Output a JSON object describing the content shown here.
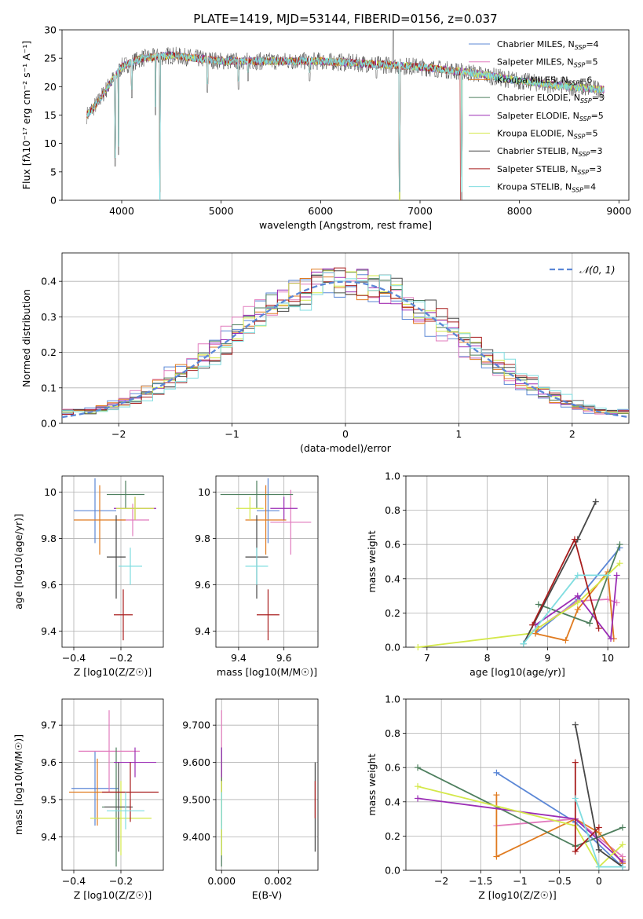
{
  "figure_title": "PLATE=1419, MJD=53144, FIBERID=0156, z=0.037",
  "legend": [
    {
      "label": "Chabrier MILES, N",
      "sub": "SSP",
      "val": "=4",
      "color": "#5b87d6"
    },
    {
      "label": "Salpeter MILES, N",
      "sub": "SSP",
      "val": "=5",
      "color": "#e17bbd"
    },
    {
      "label": "Kroupa MILES, N",
      "sub": "SSP",
      "val": "=6",
      "color": "#e07b20"
    },
    {
      "label": "Chabrier ELODIE, N",
      "sub": "SSP",
      "val": "=3",
      "color": "#4e7f5e"
    },
    {
      "label": "Salpeter ELODIE, N",
      "sub": "SSP",
      "val": "=5",
      "color": "#9b2db5"
    },
    {
      "label": "Kroupa ELODIE, N",
      "sub": "SSP",
      "val": "=5",
      "color": "#d4e84a"
    },
    {
      "label": "Chabrier STELIB, N",
      "sub": "SSP",
      "val": "=3",
      "color": "#474747"
    },
    {
      "label": "Salpeter STELIB, N",
      "sub": "SSP",
      "val": "=3",
      "color": "#a81d1d"
    },
    {
      "label": "Kroupa STELIB, N",
      "sub": "SSP",
      "val": "=4",
      "color": "#7fdde0"
    }
  ],
  "chart_data": [
    {
      "id": "spectrum",
      "type": "line",
      "xlabel": "wavelength [Angstrom, rest frame]",
      "ylabel": "Flux [fλ10⁻¹⁷ erg cm⁻² s⁻¹ A⁻¹]",
      "xlim": [
        3400,
        9100
      ],
      "ylim": [
        0,
        30
      ],
      "xticks": [
        4000,
        5000,
        6000,
        7000,
        8000,
        9000
      ],
      "yticks": [
        0,
        5,
        10,
        15,
        20,
        25,
        30
      ],
      "continuum": [
        [
          3650,
          15
        ],
        [
          3750,
          17
        ],
        [
          3900,
          21
        ],
        [
          4000,
          23.5
        ],
        [
          4200,
          25
        ],
        [
          4500,
          25.5
        ],
        [
          5000,
          24.5
        ],
        [
          6000,
          24.5
        ],
        [
          6500,
          24
        ],
        [
          7000,
          23.5
        ],
        [
          7500,
          22.5
        ],
        [
          8000,
          21
        ],
        [
          8500,
          20
        ],
        [
          8850,
          19.5
        ]
      ],
      "dips": [
        [
          3934,
          6
        ],
        [
          3968,
          8
        ],
        [
          4101,
          18
        ],
        [
          4340,
          15
        ],
        [
          4384,
          0
        ],
        [
          4861,
          19
        ],
        [
          5175,
          19.5
        ],
        [
          5270,
          21
        ],
        [
          5890,
          21
        ],
        [
          6563,
          21.5
        ],
        [
          6795,
          0
        ],
        [
          7420,
          0
        ]
      ]
    },
    {
      "id": "residuals",
      "type": "step",
      "xlabel": "(data-model)/error",
      "ylabel": "Normed distribution",
      "xlim": [
        -2.5,
        2.5
      ],
      "ylim": [
        0,
        0.48
      ],
      "xticks": [
        -2,
        -1,
        0,
        1,
        2
      ],
      "yticks": [
        0.0,
        0.1,
        0.2,
        0.3,
        0.4
      ],
      "legend_label": "𝒩(0, 1)",
      "bins": [
        -2.5,
        -2.4,
        -2.3,
        -2.2,
        -2.1,
        -2.0,
        -1.9,
        -1.8,
        -1.7,
        -1.6,
        -1.5,
        -1.4,
        -1.3,
        -1.2,
        -1.1,
        -1.0,
        -0.9,
        -0.8,
        -0.7,
        -0.6,
        -0.5,
        -0.4,
        -0.3,
        -0.2,
        -0.1,
        0.0,
        0.1,
        0.2,
        0.3,
        0.4,
        0.5,
        0.6,
        0.7,
        0.8,
        0.9,
        1.0,
        1.1,
        1.2,
        1.3,
        1.4,
        1.5,
        1.6,
        1.7,
        1.8,
        1.9,
        2.0,
        2.1,
        2.2,
        2.3,
        2.4,
        2.5
      ]
    },
    {
      "id": "age_vs_Z",
      "type": "errorbar",
      "xlabel": "Z [log10(Z/Z☉)]",
      "ylabel": "age  [log10(age/yr)]",
      "xlim": [
        -0.45,
        -0.02
      ],
      "ylim": [
        9.33,
        10.07
      ],
      "xticks": [
        -0.4,
        -0.2
      ],
      "yticks": [
        9.4,
        9.6,
        9.8,
        10.0
      ],
      "points": [
        {
          "x": -0.31,
          "y": 9.92,
          "xerr": 0.09,
          "yerr": 0.14
        },
        {
          "x": -0.15,
          "y": 9.88,
          "xerr": 0.07,
          "yerr": 0.07
        },
        {
          "x": -0.29,
          "y": 9.88,
          "xerr": 0.11,
          "yerr": 0.15
        },
        {
          "x": -0.18,
          "y": 9.99,
          "xerr": 0.08,
          "yerr": 0.06
        },
        {
          "x": -0.14,
          "y": 9.93,
          "xerr": 0.09,
          "yerr": 0.05
        },
        {
          "x": -0.14,
          "y": 9.93,
          "xerr": 0.08,
          "yerr": 0.05
        },
        {
          "x": -0.22,
          "y": 9.72,
          "xerr": 0.04,
          "yerr": 0.18
        },
        {
          "x": -0.19,
          "y": 9.47,
          "xerr": 0.04,
          "yerr": 0.11
        },
        {
          "x": -0.16,
          "y": 9.68,
          "xerr": 0.05,
          "yerr": 0.08
        }
      ]
    },
    {
      "id": "age_vs_mass",
      "type": "errorbar",
      "xlabel": "mass [log10(M/M☉)]",
      "ylabel": "",
      "xlim": [
        9.3,
        9.75
      ],
      "ylim": [
        9.33,
        10.07
      ],
      "xticks": [
        9.4,
        9.6
      ],
      "yticks": [
        9.4,
        9.6,
        9.8,
        10.0
      ],
      "points": [
        {
          "x": 9.53,
          "y": 9.92,
          "xerr": 0.05,
          "yerr": 0.14
        },
        {
          "x": 9.63,
          "y": 9.87,
          "xerr": 0.09,
          "yerr": 0.14
        },
        {
          "x": 9.52,
          "y": 9.88,
          "xerr": 0.09,
          "yerr": 0.15
        },
        {
          "x": 9.48,
          "y": 9.99,
          "xerr": 0.16,
          "yerr": 0.06
        },
        {
          "x": 9.6,
          "y": 9.93,
          "xerr": 0.06,
          "yerr": 0.05
        },
        {
          "x": 9.45,
          "y": 9.93,
          "xerr": 0.06,
          "yerr": 0.05
        },
        {
          "x": 9.48,
          "y": 9.72,
          "xerr": 0.05,
          "yerr": 0.18
        },
        {
          "x": 9.53,
          "y": 9.47,
          "xerr": 0.05,
          "yerr": 0.11
        },
        {
          "x": 9.48,
          "y": 9.68,
          "xerr": 0.05,
          "yerr": 0.08
        }
      ]
    },
    {
      "id": "weight_vs_age",
      "type": "line",
      "xlabel": "age  [log10(age/yr)]",
      "ylabel": "mass weight",
      "xlim": [
        6.65,
        10.35
      ],
      "ylim": [
        0,
        1
      ],
      "xticks": [
        7,
        8,
        9,
        10
      ],
      "yticks": [
        0.0,
        0.2,
        0.4,
        0.6,
        0.8,
        1.0
      ],
      "series": [
        {
          "pts": [
            [
              8.8,
              0.08
            ],
            [
              9.5,
              0.28
            ],
            [
              10.2,
              0.58
            ]
          ]
        },
        {
          "pts": [
            [
              8.8,
              0.1
            ],
            [
              9.5,
              0.27
            ],
            [
              10.0,
              0.28
            ],
            [
              10.15,
              0.26
            ]
          ]
        },
        {
          "pts": [
            [
              8.85,
              0.12
            ],
            [
              8.8,
              0.08
            ],
            [
              9.3,
              0.04
            ],
            [
              9.5,
              0.22
            ],
            [
              10.0,
              0.44
            ],
            [
              10.1,
              0.05
            ]
          ]
        },
        {
          "pts": [
            [
              8.85,
              0.25
            ],
            [
              9.7,
              0.14
            ],
            [
              10.2,
              0.6
            ]
          ]
        },
        {
          "pts": [
            [
              8.8,
              0.13
            ],
            [
              9.5,
              0.3
            ],
            [
              10.05,
              0.05
            ],
            [
              10.15,
              0.42
            ]
          ]
        },
        {
          "pts": [
            [
              6.85,
              0.0
            ],
            [
              8.7,
              0.08
            ],
            [
              9.5,
              0.26
            ],
            [
              10.2,
              0.49
            ]
          ]
        },
        {
          "pts": [
            [
              8.6,
              0.02
            ],
            [
              9.5,
              0.63
            ],
            [
              9.8,
              0.85
            ]
          ]
        },
        {
          "pts": [
            [
              8.75,
              0.13
            ],
            [
              9.45,
              0.63
            ],
            [
              9.85,
              0.11
            ]
          ]
        },
        {
          "pts": [
            [
              8.6,
              0.02
            ],
            [
              9.5,
              0.42
            ],
            [
              10.0,
              0.42
            ]
          ]
        }
      ]
    },
    {
      "id": "mass_vs_Z",
      "type": "errorbar",
      "xlabel": "Z [log10(Z/Z☉)]",
      "ylabel": "mass [log10(M/M☉)]",
      "xlim": [
        -0.45,
        -0.02
      ],
      "ylim": [
        9.31,
        9.77
      ],
      "xticks": [
        -0.4,
        -0.2
      ],
      "yticks": [
        9.4,
        9.5,
        9.6,
        9.7
      ],
      "points": [
        {
          "x": -0.31,
          "y": 9.53,
          "xerr": 0.1,
          "yerr": 0.1
        },
        {
          "x": -0.25,
          "y": 9.63,
          "xerr": 0.13,
          "yerr": 0.11
        },
        {
          "x": -0.3,
          "y": 9.52,
          "xerr": 0.12,
          "yerr": 0.09
        },
        {
          "x": -0.22,
          "y": 9.48,
          "xerr": 0.06,
          "yerr": 0.16
        },
        {
          "x": -0.14,
          "y": 9.6,
          "xerr": 0.09,
          "yerr": 0.04
        },
        {
          "x": -0.2,
          "y": 9.45,
          "xerr": 0.13,
          "yerr": 0.1
        },
        {
          "x": -0.21,
          "y": 9.48,
          "xerr": 0.06,
          "yerr": 0.12
        },
        {
          "x": -0.16,
          "y": 9.52,
          "xerr": 0.12,
          "yerr": 0.08
        },
        {
          "x": -0.18,
          "y": 9.47,
          "xerr": 0.08,
          "yerr": 0.05
        }
      ]
    },
    {
      "id": "mass_vs_EBV",
      "type": "errorbar",
      "xlabel": "E(B-V)",
      "ylabel": "",
      "xlim": [
        -0.0002,
        0.0034
      ],
      "ylim": [
        9.31,
        9.77
      ],
      "xticks": [
        0.0,
        0.002
      ],
      "yticks": [
        9.4,
        9.5,
        9.6,
        9.7
      ],
      "points": [
        {
          "x": 0.0,
          "y": 9.53,
          "xerr": 0.0,
          "yerr": 0.1
        },
        {
          "x": 0.0,
          "y": 9.63,
          "xerr": 0.0,
          "yerr": 0.11
        },
        {
          "x": 0.0,
          "y": 9.52,
          "xerr": 0.0,
          "yerr": 0.09
        },
        {
          "x": 0.0,
          "y": 9.48,
          "xerr": 0.0,
          "yerr": 0.16
        },
        {
          "x": 0.0,
          "y": 9.6,
          "xerr": 0.0,
          "yerr": 0.04
        },
        {
          "x": 0.0,
          "y": 9.45,
          "xerr": 0.0,
          "yerr": 0.1
        },
        {
          "x": 0.0033,
          "y": 9.48,
          "xerr": 0.0,
          "yerr": 0.12
        },
        {
          "x": 0.0033,
          "y": 9.5,
          "xerr": 0.0,
          "yerr": 0.05
        },
        {
          "x": 0.0,
          "y": 9.47,
          "xerr": 0.0,
          "yerr": 0.05
        }
      ]
    },
    {
      "id": "weight_vs_Z",
      "type": "line",
      "xlabel": "Z [log10(Z/Z☉)]",
      "ylabel": "mass weight",
      "xlim": [
        -2.45,
        0.38
      ],
      "ylim": [
        0,
        1
      ],
      "xticks": [
        -2.0,
        -1.5,
        -1.0,
        -0.5,
        0.0
      ],
      "yticks": [
        0.0,
        0.2,
        0.4,
        0.6,
        0.8,
        1.0
      ],
      "series": [
        {
          "pts": [
            [
              -1.3,
              0.57
            ],
            [
              -0.3,
              0.28
            ],
            [
              0.3,
              0.02
            ]
          ]
        },
        {
          "pts": [
            [
              -1.3,
              0.26
            ],
            [
              -0.3,
              0.3
            ],
            [
              0.3,
              0.08
            ]
          ]
        },
        {
          "pts": [
            [
              -1.3,
              0.44
            ],
            [
              -1.3,
              0.08
            ],
            [
              -0.3,
              0.3
            ],
            [
              0.0,
              0.22
            ],
            [
              0.3,
              0.04
            ],
            [
              0.3,
              0.06
            ]
          ]
        },
        {
          "pts": [
            [
              -2.3,
              0.6
            ],
            [
              -0.3,
              0.14
            ],
            [
              0.3,
              0.25
            ]
          ]
        },
        {
          "pts": [
            [
              -2.3,
              0.42
            ],
            [
              -0.3,
              0.3
            ],
            [
              0.3,
              0.05
            ]
          ]
        },
        {
          "pts": [
            [
              -2.3,
              0.49
            ],
            [
              -0.3,
              0.26
            ],
            [
              0.0,
              0.02
            ],
            [
              0.3,
              0.15
            ]
          ]
        },
        {
          "pts": [
            [
              -0.3,
              0.85
            ],
            [
              0.0,
              0.12
            ],
            [
              0.3,
              0.02
            ]
          ]
        },
        {
          "pts": [
            [
              -0.3,
              0.63
            ],
            [
              -0.3,
              0.11
            ],
            [
              0.0,
              0.25
            ]
          ]
        },
        {
          "pts": [
            [
              -0.3,
              0.42
            ],
            [
              0.0,
              0.02
            ],
            [
              0.3,
              0.02
            ]
          ]
        }
      ]
    }
  ]
}
